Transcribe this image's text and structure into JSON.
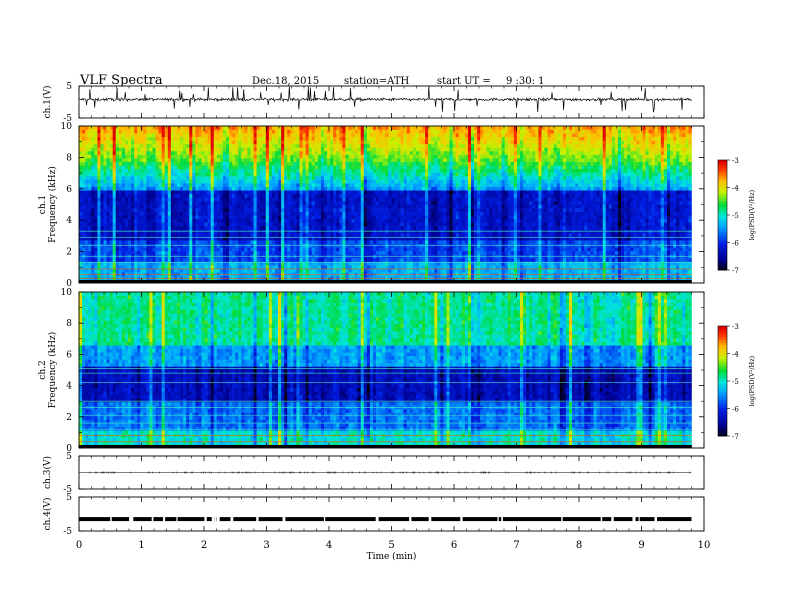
{
  "header": {
    "title": "VLF  Spectra",
    "date": "Dec.18, 2015",
    "station": "station=ATH",
    "start_label": "start  UT  =",
    "start_time": "9  :30: 1"
  },
  "chart_data": [
    {
      "type": "line",
      "ylabel": "ch.1(V)",
      "ylim": [
        -5,
        5
      ],
      "yticks": [
        "5",
        "-5"
      ],
      "xlim": [
        0,
        10
      ],
      "description_series": "noisy waveform around ~0.8 V with spikes",
      "x_end_min": 9.8,
      "baseline_v": 0.8
    },
    {
      "type": "heatmap",
      "xlabel": "",
      "ylabel": "ch.1\nFrequency  (kHz)",
      "ylim": [
        0,
        10
      ],
      "yticks": [
        "0",
        "2",
        "4",
        "6",
        "8",
        "10"
      ],
      "xlim": [
        0,
        10
      ],
      "x_end_min": 9.8,
      "colorbar": {
        "label": "log(PSD(V²/Hz)",
        "ticks": [
          "-3",
          "-4",
          "-5",
          "-6",
          "-7"
        ],
        "range": [
          -7,
          -3
        ]
      }
    },
    {
      "type": "heatmap",
      "ylabel": "ch.2\nFrequency  (kHz)",
      "ylim": [
        0,
        10
      ],
      "yticks": [
        "0",
        "2",
        "4",
        "6",
        "8",
        "10"
      ],
      "xlim": [
        0,
        10
      ],
      "x_end_min": 9.8,
      "colorbar": {
        "label": "log(PSD(V²/Hz)",
        "ticks": [
          "-3",
          "-4",
          "-5",
          "-6",
          "-7"
        ],
        "range": [
          -7,
          -3
        ]
      }
    },
    {
      "type": "line",
      "ylabel": "ch.3(V)",
      "ylim": [
        -5,
        5
      ],
      "yticks": [
        "5",
        "-5"
      ],
      "xlim": [
        0,
        10
      ],
      "x_end_min": 9.8,
      "baseline_v": 0
    },
    {
      "type": "line",
      "ylabel": "ch.4(V)",
      "ylim": [
        -5,
        5
      ],
      "yticks": [
        "5",
        "-5"
      ],
      "xlim": [
        0,
        10
      ],
      "x_end_min": 9.8,
      "baseline_v": -1.5,
      "xlabel": "Time  (min)",
      "xticks": [
        "0",
        "1",
        "2",
        "3",
        "4",
        "5",
        "6",
        "7",
        "8",
        "9",
        "10"
      ]
    }
  ],
  "colors": {
    "axis": "#000000",
    "trace": "#000000"
  }
}
